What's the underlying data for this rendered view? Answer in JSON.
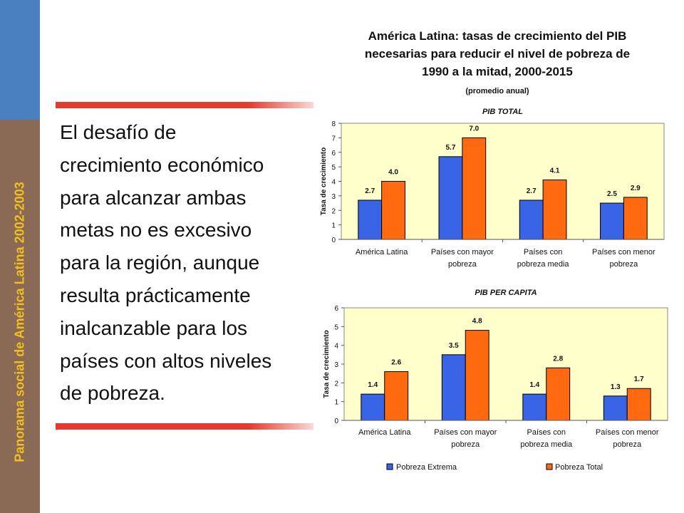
{
  "sidebar": {
    "vertical_text": "Panorama social de América Latina 2002-2003",
    "colors": {
      "brown": "#8b6a55",
      "blue": "#4a7fc0",
      "text": "#f0c020"
    }
  },
  "slide": {
    "body_lines": [
      "El desafío de",
      "crecimiento económico",
      "para alcanzar ambas",
      "metas no es excesivo",
      "para la región, aunque",
      "resulta prácticamente",
      "inalcanzable para los",
      "países con altos niveles",
      "de pobreza."
    ],
    "title_lines": [
      "América Latina: tasas de crecimiento del PIB",
      "necesarias para reducir el nivel de pobreza de",
      "1990 a la mitad, 2000-2015"
    ],
    "subtitle": "(promedio anual)",
    "rule_color": "#e53b2c"
  },
  "legend": {
    "placement": "bottom",
    "items": [
      "Pobreza Extrema",
      "Pobreza Total"
    ]
  },
  "chart_data": [
    {
      "type": "bar",
      "title": "PIB TOTAL",
      "ylabel": "Tasa de crecimiento",
      "ylim": [
        0,
        8
      ],
      "yticks": [
        0,
        1,
        2,
        3,
        4,
        5,
        6,
        7,
        8
      ],
      "grid": false,
      "categories": [
        [
          "América Latina"
        ],
        [
          "Países con mayor",
          "pobreza"
        ],
        [
          "Países con",
          "pobreza media"
        ],
        [
          "Países con menor",
          "pobreza"
        ]
      ],
      "series": [
        {
          "name": "Pobreza Extrema",
          "color": "#3a64e6",
          "values": [
            2.7,
            5.7,
            2.7,
            2.5
          ],
          "labels": [
            "2.7",
            "5.7",
            "2.7",
            "2.5"
          ]
        },
        {
          "name": "Pobreza Total",
          "color": "#ff6a10",
          "values": [
            4.0,
            7.0,
            4.1,
            2.9
          ],
          "labels": [
            "4.0",
            "7.0",
            "4.1",
            "2.9"
          ]
        }
      ]
    },
    {
      "type": "bar",
      "title": "PIB PER CAPITA",
      "ylabel": "Tasa de crecimiento",
      "ylim": [
        0,
        6
      ],
      "yticks": [
        0,
        1,
        2,
        3,
        4,
        5,
        6
      ],
      "grid": false,
      "categories": [
        [
          "América Latina"
        ],
        [
          "Países con mayor",
          "pobreza"
        ],
        [
          "Países con",
          "pobreza media"
        ],
        [
          "Países con menor",
          "pobreza"
        ]
      ],
      "series": [
        {
          "name": "Pobreza Extrema",
          "color": "#3a64e6",
          "values": [
            1.4,
            3.5,
            1.4,
            1.3
          ],
          "labels": [
            "1.4",
            "3.5",
            "1.4",
            "1.3"
          ]
        },
        {
          "name": "Pobreza Total",
          "color": "#ff6a10",
          "values": [
            2.6,
            4.8,
            2.8,
            1.7
          ],
          "labels": [
            "2.6",
            "4.8",
            "2.8",
            "1.7"
          ]
        }
      ]
    }
  ]
}
